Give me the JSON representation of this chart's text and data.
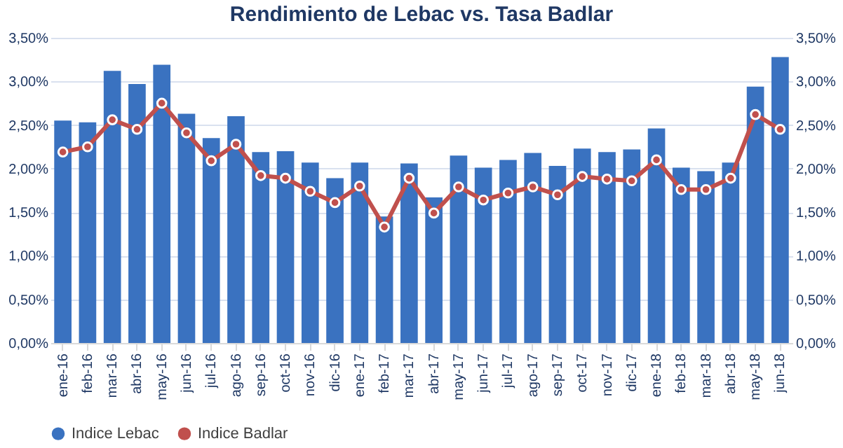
{
  "chart_data": {
    "type": "bar",
    "title": "Rendimiento de Lebac vs. Tasa Badlar",
    "categories": [
      "ene-16",
      "feb-16",
      "mar-16",
      "abr-16",
      "may-16",
      "jun-16",
      "jul-16",
      "ago-16",
      "sep-16",
      "oct-16",
      "nov-16",
      "dic-16",
      "ene-17",
      "feb-17",
      "mar-17",
      "abr-17",
      "may-17",
      "jun-17",
      "jul-17",
      "ago-17",
      "sep-17",
      "oct-17",
      "nov-17",
      "dic-17",
      "ene-18",
      "feb-18",
      "mar-18",
      "abr-18",
      "may-18",
      "jun-18"
    ],
    "series": [
      {
        "name": "Indice Lebac",
        "color": "#3a72c0",
        "values": [
          2.55,
          2.53,
          3.12,
          2.97,
          3.19,
          2.63,
          2.35,
          2.6,
          2.19,
          2.2,
          2.07,
          1.89,
          2.07,
          1.45,
          2.06,
          1.67,
          2.15,
          2.01,
          2.1,
          2.18,
          2.03,
          2.23,
          2.19,
          2.22,
          2.46,
          2.01,
          1.97,
          2.07,
          2.94,
          3.28
        ]
      },
      {
        "name": "Indice Badlar",
        "type": "line",
        "axis": "y2",
        "color": "#c0504d",
        "marker": "circle",
        "line_style": "solid",
        "values": [
          2.19,
          2.25,
          2.56,
          2.45,
          2.75,
          2.41,
          2.09,
          2.28,
          1.92,
          1.89,
          1.74,
          1.61,
          1.8,
          1.33,
          1.89,
          1.49,
          1.79,
          1.64,
          1.72,
          1.79,
          1.7,
          1.91,
          1.88,
          1.86,
          2.1,
          1.76,
          1.76,
          1.89,
          2.62,
          2.45
        ]
      }
    ],
    "ylim": [
      0,
      3.5
    ],
    "yticks": [
      {
        "value": 0,
        "label": "0,00%"
      },
      {
        "value": 0.5,
        "label": "0,50%"
      },
      {
        "value": 1,
        "label": "1,00%"
      },
      {
        "value": 1.5,
        "label": "1,50%"
      },
      {
        "value": 2,
        "label": "2,00%"
      },
      {
        "value": 2.5,
        "label": "2,50%"
      },
      {
        "value": 3,
        "label": "3,00%"
      },
      {
        "value": 3.5,
        "label": "3,50%"
      }
    ],
    "y2lim": [
      0,
      3.5
    ],
    "y2ticks": [
      {
        "value": 0,
        "label": "0,00%"
      },
      {
        "value": 0.5,
        "label": "0,50%"
      },
      {
        "value": 1,
        "label": "1,00%"
      },
      {
        "value": 1.5,
        "label": "1,50%"
      },
      {
        "value": 2,
        "label": "2,00%"
      },
      {
        "value": 2.5,
        "label": "2,50%"
      },
      {
        "value": 3,
        "label": "3,00%"
      },
      {
        "value": 3.5,
        "label": "3,50%"
      }
    ],
    "grid": "y",
    "legend": "bottom"
  }
}
